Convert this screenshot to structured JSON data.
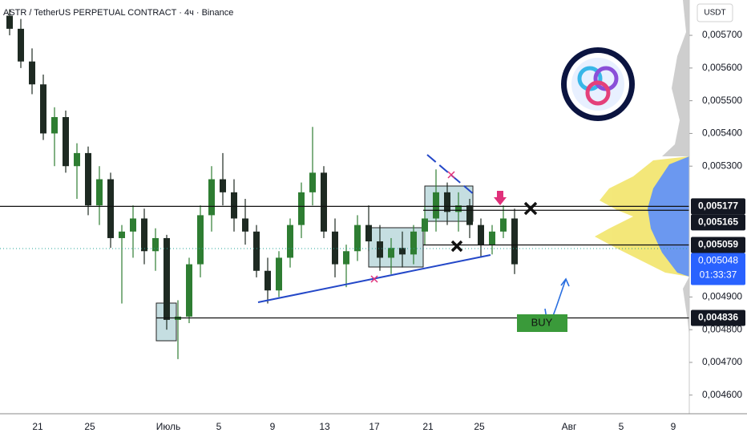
{
  "chart_data": {
    "type": "candlestick",
    "title": "ASTR / TetherUS PERPETUAL CONTRACT · 4ч · Binance",
    "currency_button": "USDT",
    "x_labels": [
      "21",
      "25",
      "Июль",
      "5",
      "9",
      "13",
      "17",
      "21",
      "25",
      "Авг",
      "5",
      "9"
    ],
    "open": [
      0.00576,
      0.00572,
      0.00562,
      0.00555,
      0.0054,
      0.00545,
      0.0053,
      0.00534,
      0.00518,
      0.00526,
      0.00508,
      0.0051,
      0.00514,
      0.00504,
      0.00508,
      0.00483,
      0.00484,
      0.005,
      0.00515,
      0.00526,
      0.00522,
      0.00514,
      0.0051,
      0.00498,
      0.00492,
      0.00502,
      0.00512,
      0.00522,
      0.00528,
      0.0051,
      0.005,
      0.00504,
      0.00512,
      0.00507,
      0.00502,
      0.00505,
      0.00503,
      0.0051,
      0.00514,
      0.00522,
      0.00516,
      0.00518,
      0.00512,
      0.00506,
      0.0051,
      0.00514
    ],
    "high": [
      0.00578,
      0.00575,
      0.00566,
      0.00558,
      0.00548,
      0.00547,
      0.00537,
      0.00536,
      0.0053,
      0.00528,
      0.00512,
      0.00518,
      0.00517,
      0.00511,
      0.00509,
      0.00489,
      0.00502,
      0.00518,
      0.0053,
      0.00534,
      0.00526,
      0.0052,
      0.00512,
      0.00502,
      0.00504,
      0.00514,
      0.00525,
      0.00542,
      0.0053,
      0.00514,
      0.00506,
      0.00515,
      0.00518,
      0.00512,
      0.00508,
      0.0051,
      0.00512,
      0.00518,
      0.00529,
      0.00525,
      0.00522,
      0.0052,
      0.00514,
      0.00512,
      0.00518,
      0.00517
    ],
    "low": [
      0.0057,
      0.0056,
      0.00552,
      0.00538,
      0.0053,
      0.00528,
      0.0052,
      0.00515,
      0.00512,
      0.00505,
      0.00488,
      0.00502,
      0.005,
      0.00498,
      0.0048,
      0.00471,
      0.00482,
      0.00496,
      0.0051,
      0.00518,
      0.0051,
      0.00506,
      0.00496,
      0.00488,
      0.0049,
      0.00499,
      0.00508,
      0.00518,
      0.00508,
      0.00496,
      0.00493,
      0.00501,
      0.00504,
      0.00498,
      0.00497,
      0.00499,
      0.005,
      0.00506,
      0.0051,
      0.00512,
      0.0051,
      0.00508,
      0.00502,
      0.00503,
      0.00508,
      0.00497
    ],
    "close": [
      0.00572,
      0.00562,
      0.00555,
      0.0054,
      0.00545,
      0.0053,
      0.00534,
      0.00518,
      0.00526,
      0.00508,
      0.0051,
      0.00514,
      0.00504,
      0.00508,
      0.00483,
      0.00484,
      0.005,
      0.00515,
      0.00526,
      0.00522,
      0.00514,
      0.0051,
      0.00498,
      0.00492,
      0.00502,
      0.00512,
      0.00522,
      0.00528,
      0.0051,
      0.005,
      0.00504,
      0.00512,
      0.00507,
      0.00502,
      0.00505,
      0.00503,
      0.0051,
      0.00514,
      0.00522,
      0.00516,
      0.00518,
      0.00512,
      0.00506,
      0.0051,
      0.00514,
      0.005
    ],
    "up_color": "#2e7d32",
    "down_color": "#1e2a22",
    "ylim": [
      0.004543,
      0.005808
    ],
    "yticks": [
      {
        "value": 0.0057,
        "label": "0,005700"
      },
      {
        "value": 0.0056,
        "label": "0,005600"
      },
      {
        "value": 0.0055,
        "label": "0,005500"
      },
      {
        "value": 0.0054,
        "label": "0,005400"
      },
      {
        "value": 0.0053,
        "label": "0,005300"
      },
      {
        "value": 0.0049,
        "label": "0,004900"
      },
      {
        "value": 0.0048,
        "label": "0,004800"
      },
      {
        "value": 0.0047,
        "label": "0,004700"
      },
      {
        "value": 0.0046,
        "label": "0,004600"
      }
    ],
    "levels": [
      {
        "value": 0.005177,
        "label": "0,005177"
      },
      {
        "value": 0.005165,
        "label": "0,005165"
      },
      {
        "value": 0.005059,
        "label": "0,005059"
      },
      {
        "value": 0.004836,
        "label": "0,004836"
      }
    ],
    "last_price": {
      "value": 0.005048,
      "label": "0,005048",
      "countdown": "01:33:37",
      "color": "#2962ff"
    },
    "annotation": "BUY"
  }
}
